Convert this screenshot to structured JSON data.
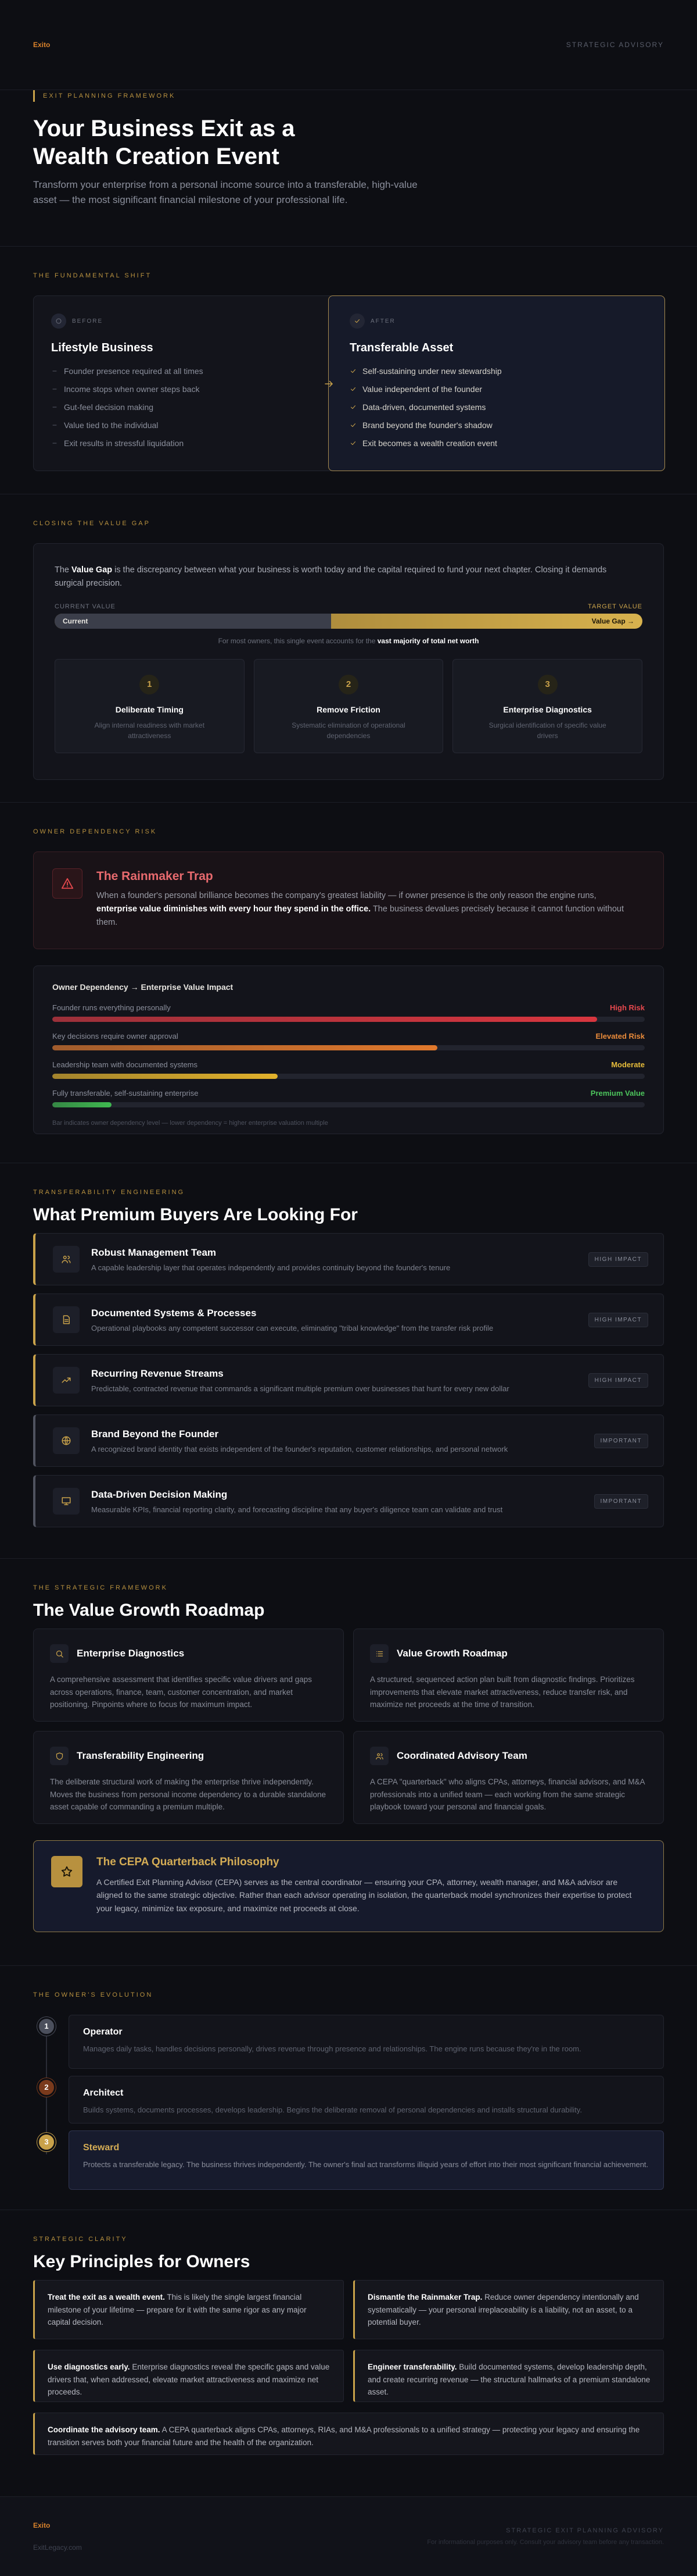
{
  "header": {
    "logo": "Exito",
    "tagline": "STRATEGIC ADVISORY"
  },
  "hero": {
    "eyebrow": "EXIT PLANNING FRAMEWORK",
    "title": "Your Business Exit as a Wealth Creation Event",
    "subtitle": "Transform your enterprise from a personal income source into a transferable, high-value asset — the most significant financial milestone of your professional life."
  },
  "shift": {
    "eyebrow": "THE FUNDAMENTAL SHIFT",
    "before": {
      "tag": "BEFORE",
      "title": "Lifestyle Business",
      "items": [
        "Founder presence required at all times",
        "Income stops when owner steps back",
        "Gut-feel decision making",
        "Value tied to the individual",
        "Exit results in stressful liquidation"
      ]
    },
    "after": {
      "tag": "AFTER",
      "title": "Transferable Asset",
      "items": [
        "Self-sustaining under new stewardship",
        "Value independent of the founder",
        "Data-driven, documented systems",
        "Brand beyond the founder's shadow",
        "Exit becomes a wealth creation event"
      ]
    }
  },
  "gap": {
    "eyebrow": "CLOSING THE VALUE GAP",
    "intro": [
      "The ",
      "Value Gap",
      " is the discrepancy between what your business is worth today and the capital required to fund your next chapter. Closing it demands surgical precision."
    ],
    "current_label": "CURRENT VALUE",
    "target_label": "TARGET VALUE",
    "bar_current": "Current",
    "bar_gap": "Value Gap →",
    "current_share": 47,
    "note": [
      "For most owners, this single event accounts for the ",
      "vast majority of total net worth"
    ],
    "steps": [
      {
        "num": "1",
        "title": "Deliberate Timing",
        "text": "Align internal readiness with market attractiveness"
      },
      {
        "num": "2",
        "title": "Remove Friction",
        "text": "Systematic elimination of operational dependencies"
      },
      {
        "num": "3",
        "title": "Enterprise Diagnostics",
        "text": "Surgical identification of specific value drivers"
      }
    ]
  },
  "risk": {
    "eyebrow": "OWNER DEPENDENCY RISK",
    "trap": {
      "title": "The Rainmaker Trap",
      "text": [
        "When a founder's personal brilliance becomes the company's greatest liability — if owner presence is the only reason the engine runs, ",
        "enterprise value diminishes with every hour they spend in the office.",
        " The business devalues precisely because it cannot function without them."
      ]
    },
    "chart": {
      "title": "Owner Dependency → Enterprise Value Impact",
      "rows": [
        {
          "label": "Founder runs everything personally",
          "status": "High Risk",
          "level": 92,
          "color": "#d8363f",
          "status_color": "#e5484d"
        },
        {
          "label": "Key decisions require owner approval",
          "status": "Elevated Risk",
          "level": 65,
          "color": "#e0782c",
          "status_color": "#e88a3a"
        },
        {
          "label": "Leadership team with documented systems",
          "status": "Moderate",
          "level": 38,
          "color": "#e2b22c",
          "status_color": "#e6bc3a"
        },
        {
          "label": "Fully transferable, self-sustaining enterprise",
          "status": "Premium Value",
          "level": 10,
          "color": "#3fb950",
          "status_color": "#4cc45c"
        }
      ],
      "footnote": "Bar indicates owner dependency level — lower dependency = higher enterprise valuation multiple"
    }
  },
  "buyers": {
    "eyebrow": "TRANSFERABILITY ENGINEERING",
    "title": "What Premium Buyers Are Looking For",
    "items": [
      {
        "title": "Robust Management Team",
        "text": "A capable leadership layer that operates independently and provides continuity beyond the founder's tenure",
        "badge": "HIGH IMPACT",
        "color": "#c9a24a"
      },
      {
        "title": "Documented Systems & Processes",
        "text": "Operational playbooks any competent successor can execute, eliminating \"tribal knowledge\" from the transfer risk profile",
        "badge": "HIGH IMPACT",
        "color": "#c9a24a"
      },
      {
        "title": "Recurring Revenue Streams",
        "text": "Predictable, contracted revenue that commands a significant multiple premium over businesses that hunt for every new dollar",
        "badge": "HIGH IMPACT",
        "color": "#c9a24a"
      },
      {
        "title": "Brand Beyond the Founder",
        "text": "A recognized brand identity that exists independent of the founder's reputation, customer relationships, and personal network",
        "badge": "IMPORTANT",
        "color": "#50535f"
      },
      {
        "title": "Data-Driven Decision Making",
        "text": "Measurable KPIs, financial reporting clarity, and forecasting discipline that any buyer's diligence team can validate and trust",
        "badge": "IMPORTANT",
        "color": "#50535f"
      }
    ]
  },
  "roadmap": {
    "eyebrow": "THE STRATEGIC FRAMEWORK",
    "title": "The Value Growth Roadmap",
    "cards": [
      {
        "title": "Enterprise Diagnostics",
        "text": "A comprehensive assessment that identifies specific value drivers and gaps across operations, finance, team, customer concentration, and market positioning. Pinpoints where to focus for maximum impact."
      },
      {
        "title": "Value Growth Roadmap",
        "text": "A structured, sequenced action plan built from diagnostic findings. Prioritizes improvements that elevate market attractiveness, reduce transfer risk, and maximize net proceeds at the time of transition."
      },
      {
        "title": "Transferability Engineering",
        "text": "The deliberate structural work of making the enterprise thrive independently. Moves the business from personal income dependency to a durable standalone asset capable of commanding a premium multiple."
      },
      {
        "title": "Coordinated Advisory Team",
        "text": "A CEPA \"quarterback\" who aligns CPAs, attorneys, financial advisors, and M&A professionals into a unified team — each working from the same strategic playbook toward your personal and financial goals."
      }
    ],
    "philosophy": {
      "title": "The CEPA Quarterback Philosophy",
      "text": "A Certified Exit Planning Advisor (CEPA) serves as the central coordinator — ensuring your CPA, attorney, wealth manager, and M&A advisor are aligned to the same strategic objective. Rather than each advisor operating in isolation, the quarterback model synchronizes their expertise to protect your legacy, minimize tax exposure, and maximize net proceeds at close."
    }
  },
  "evolution": {
    "eyebrow": "THE OWNER'S EVOLUTION",
    "stages": [
      {
        "num": "1",
        "title": "Operator",
        "text": "Manages daily tasks, handles decisions personally, drives revenue through presence and relationships. The engine runs because they're in the room.",
        "color": "#4b4f5c"
      },
      {
        "num": "2",
        "title": "Architect",
        "text": "Builds systems, documents processes, develops leadership. Begins the deliberate removal of personal dependencies and installs structural durability.",
        "color": "#7a3a1c"
      },
      {
        "num": "3",
        "title": "Steward",
        "text": "Protects a transferable legacy. The business thrives independently. The owner's final act transforms illiquid years of effort into their most significant financial achievement.",
        "color": "#c9a24a"
      }
    ]
  },
  "principles": {
    "eyebrow": "STRATEGIC CLARITY",
    "title": "Key Principles for Owners",
    "items": [
      {
        "lead": "Treat the exit as a wealth event.",
        "text": " This is likely the single largest financial milestone of your lifetime — prepare for it with the same rigor as any major capital decision."
      },
      {
        "lead": "Dismantle the Rainmaker Trap.",
        "text": " Reduce owner dependency intentionally and systematically — your personal irreplaceability is a liability, not an asset, to a potential buyer."
      },
      {
        "lead": "Use diagnostics early.",
        "text": " Enterprise diagnostics reveal the specific gaps and value drivers that, when addressed, elevate market attractiveness and maximize net proceeds."
      },
      {
        "lead": "Engineer transferability.",
        "text": " Build documented systems, develop leadership depth, and create recurring revenue — the structural hallmarks of a premium standalone asset."
      },
      {
        "lead": "Coordinate the advisory team.",
        "text": " A CEPA quarterback aligns CPAs, attorneys, RIAs, and M&A professionals to a unified strategy — protecting your legacy and ensuring the transition serves both your financial future and the health of the organization."
      }
    ]
  },
  "footer": {
    "logo": "Exito",
    "site": "ExitLegacy.com",
    "tagline": "STRATEGIC EXIT PLANNING ADVISORY",
    "disclaimer": "For informational purposes only. Consult your advisory team before any transaction."
  }
}
